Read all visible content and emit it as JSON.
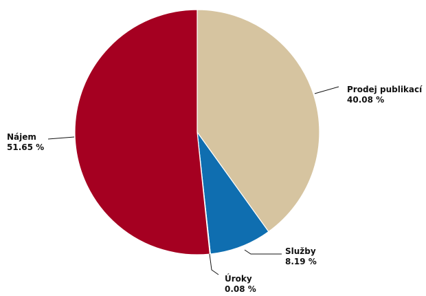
{
  "chart_data": {
    "type": "pie",
    "title": "",
    "start_angle_deg": 0,
    "direction": "clockwise",
    "slices": [
      {
        "label": "Prodej publikací",
        "value": 40.08,
        "value_label": "40.08 %",
        "color": "#d6c4a0"
      },
      {
        "label": "Služby",
        "value": 8.19,
        "value_label": "8.19 %",
        "color": "#0f6eb0"
      },
      {
        "label": "Úroky",
        "value": 0.08,
        "value_label": "0.08 %",
        "color": "#1f4f86"
      },
      {
        "label": "Nájem",
        "value": 51.65,
        "value_label": "51.65 %",
        "color": "#a50021"
      }
    ]
  }
}
